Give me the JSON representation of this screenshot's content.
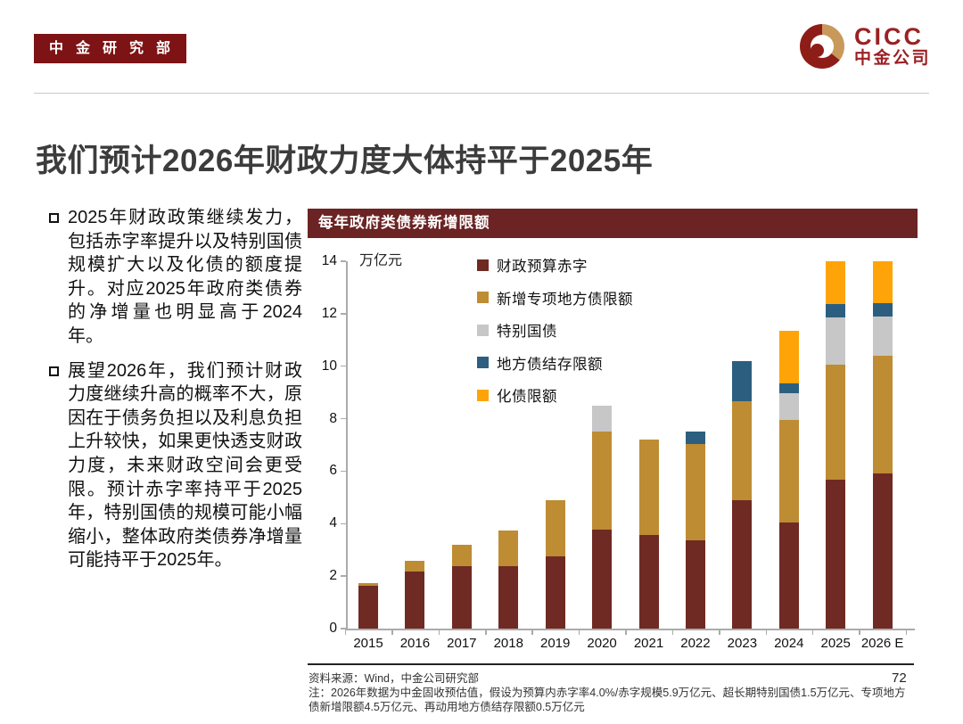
{
  "badge": {
    "label": "中金研究部"
  },
  "logo": {
    "cicc": "CICC",
    "chinese": "中金公司"
  },
  "title": "我们预计2026年财政力度大体持平于2025年",
  "bullets": [
    "2025年财政政策继续发力，包括赤字率提升以及特别国债规模扩大以及化债的额度提升。对应2025年政府类债券的净增量也明显高于2024年。",
    "展望2026年，我们预计财政力度继续升高的概率不大，原因在于债务负担以及利息负担上升较快，如果更快透支财政力度，未来财政空间会更受限。预计赤字率持平于2025年，特别国债的规模可能小幅缩小，整体政府类债券净增量可能持平于2025年。"
  ],
  "chart": {
    "header": "每年政府类债券新增限额",
    "unit": "万亿元"
  },
  "chart_data": {
    "type": "bar",
    "stacked": true,
    "title": "每年政府类债券新增限额",
    "ylabel": "万亿元",
    "ylim": [
      0,
      14
    ],
    "yticks": [
      0,
      2,
      4,
      6,
      8,
      10,
      12,
      14
    ],
    "clip_at_max": true,
    "legend_position": "top-right-inside",
    "grid": false,
    "categories": [
      "2015",
      "2016",
      "2017",
      "2018",
      "2019",
      "2020",
      "2021",
      "2022",
      "2023",
      "2024",
      "2025",
      "2026 E"
    ],
    "series": [
      {
        "name": "财政预算赤字",
        "color": "#6F2A23",
        "values": [
          1.62,
          2.18,
          2.38,
          2.38,
          2.76,
          3.76,
          3.57,
          3.37,
          4.88,
          4.06,
          5.66,
          5.9
        ]
      },
      {
        "name": "新增专项地方债限额",
        "color": "#BE8C33",
        "values": [
          0.1,
          0.4,
          0.8,
          1.35,
          2.15,
          3.75,
          3.65,
          3.65,
          3.8,
          3.9,
          4.4,
          4.5
        ]
      },
      {
        "name": "特别国债",
        "color": "#C7C7C7",
        "values": [
          0,
          0,
          0,
          0,
          0,
          1.0,
          0,
          0,
          0,
          1.0,
          1.8,
          1.5
        ]
      },
      {
        "name": "地方债结存限额",
        "color": "#2C5F7F",
        "values": [
          0,
          0,
          0,
          0,
          0,
          0,
          0,
          0.5,
          1.5,
          0.4,
          0.5,
          0.5
        ]
      },
      {
        "name": "化债限额",
        "color": "#FFA408",
        "values": [
          0,
          0,
          0,
          0,
          0,
          0,
          0,
          0,
          0,
          2.0,
          2.0,
          2.0
        ]
      }
    ]
  },
  "footer": {
    "source": "资料来源：Wind，中金公司研究部",
    "note": "注：2026年数据为中金固收预估值，假设为预算内赤字率4.0%/赤字规模5.9万亿元、超长期特别国债1.5万亿元、专项地方债新增限额4.5万亿元、再动用地方债结存限额0.5万亿元",
    "page": "72"
  }
}
